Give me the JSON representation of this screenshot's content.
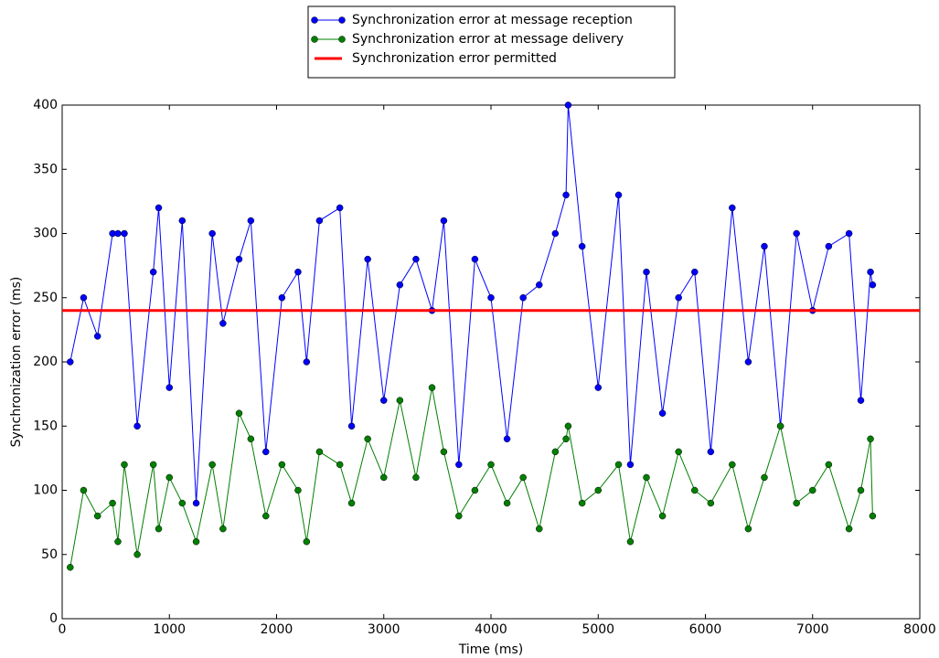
{
  "chart_data": {
    "type": "line",
    "x_label": "Time (ms)",
    "y_label": "Synchronization error (ms)",
    "xlim": [
      0,
      8000
    ],
    "xticks": [
      0,
      1000,
      2000,
      3000,
      4000,
      5000,
      6000,
      7000,
      8000
    ],
    "ylim": [
      0,
      400
    ],
    "yticks": [
      0,
      50,
      100,
      150,
      200,
      250,
      300,
      350,
      400
    ],
    "legend": "top-outside",
    "x": [
      75,
      200,
      330,
      470,
      520,
      580,
      700,
      850,
      900,
      1000,
      1120,
      1250,
      1400,
      1500,
      1650,
      1760,
      1900,
      2050,
      2200,
      2280,
      2400,
      2590,
      2700,
      2850,
      3000,
      3150,
      3300,
      3450,
      3560,
      3700,
      3850,
      4000,
      4150,
      4300,
      4450,
      4600,
      4700,
      4720,
      4850,
      5000,
      5190,
      5300,
      5450,
      5600,
      5750,
      5900,
      6050,
      6250,
      6400,
      6550,
      6700,
      6850,
      7000,
      7150,
      7340,
      7450,
      7540,
      7560
    ],
    "series": [
      {
        "name": "Synchronization error at message reception",
        "color": "#0000ff",
        "marker": true,
        "values": [
          200,
          250,
          220,
          300,
          300,
          300,
          150,
          270,
          320,
          180,
          310,
          90,
          300,
          230,
          280,
          310,
          130,
          250,
          270,
          200,
          310,
          320,
          150,
          280,
          170,
          260,
          280,
          240,
          310,
          120,
          280,
          250,
          140,
          250,
          260,
          300,
          330,
          400,
          290,
          180,
          330,
          120,
          270,
          160,
          250,
          270,
          130,
          320,
          200,
          290,
          150,
          300,
          240,
          290,
          300,
          170,
          270,
          260
        ]
      },
      {
        "name": "Synchronization error at message delivery",
        "color": "#007f00",
        "marker": true,
        "values": [
          40,
          100,
          80,
          90,
          60,
          120,
          50,
          120,
          70,
          110,
          90,
          60,
          120,
          70,
          160,
          140,
          80,
          120,
          100,
          60,
          130,
          120,
          90,
          140,
          110,
          170,
          110,
          180,
          130,
          80,
          100,
          120,
          90,
          110,
          70,
          130,
          140,
          150,
          90,
          100,
          120,
          60,
          110,
          80,
          130,
          100,
          90,
          120,
          70,
          110,
          150,
          90,
          100,
          120,
          70,
          100,
          140,
          80
        ]
      },
      {
        "name": "Synchronization error permitted",
        "color": "#ff0000",
        "marker": false,
        "x": [
          0,
          8000
        ],
        "values": [
          240,
          240
        ]
      }
    ]
  }
}
